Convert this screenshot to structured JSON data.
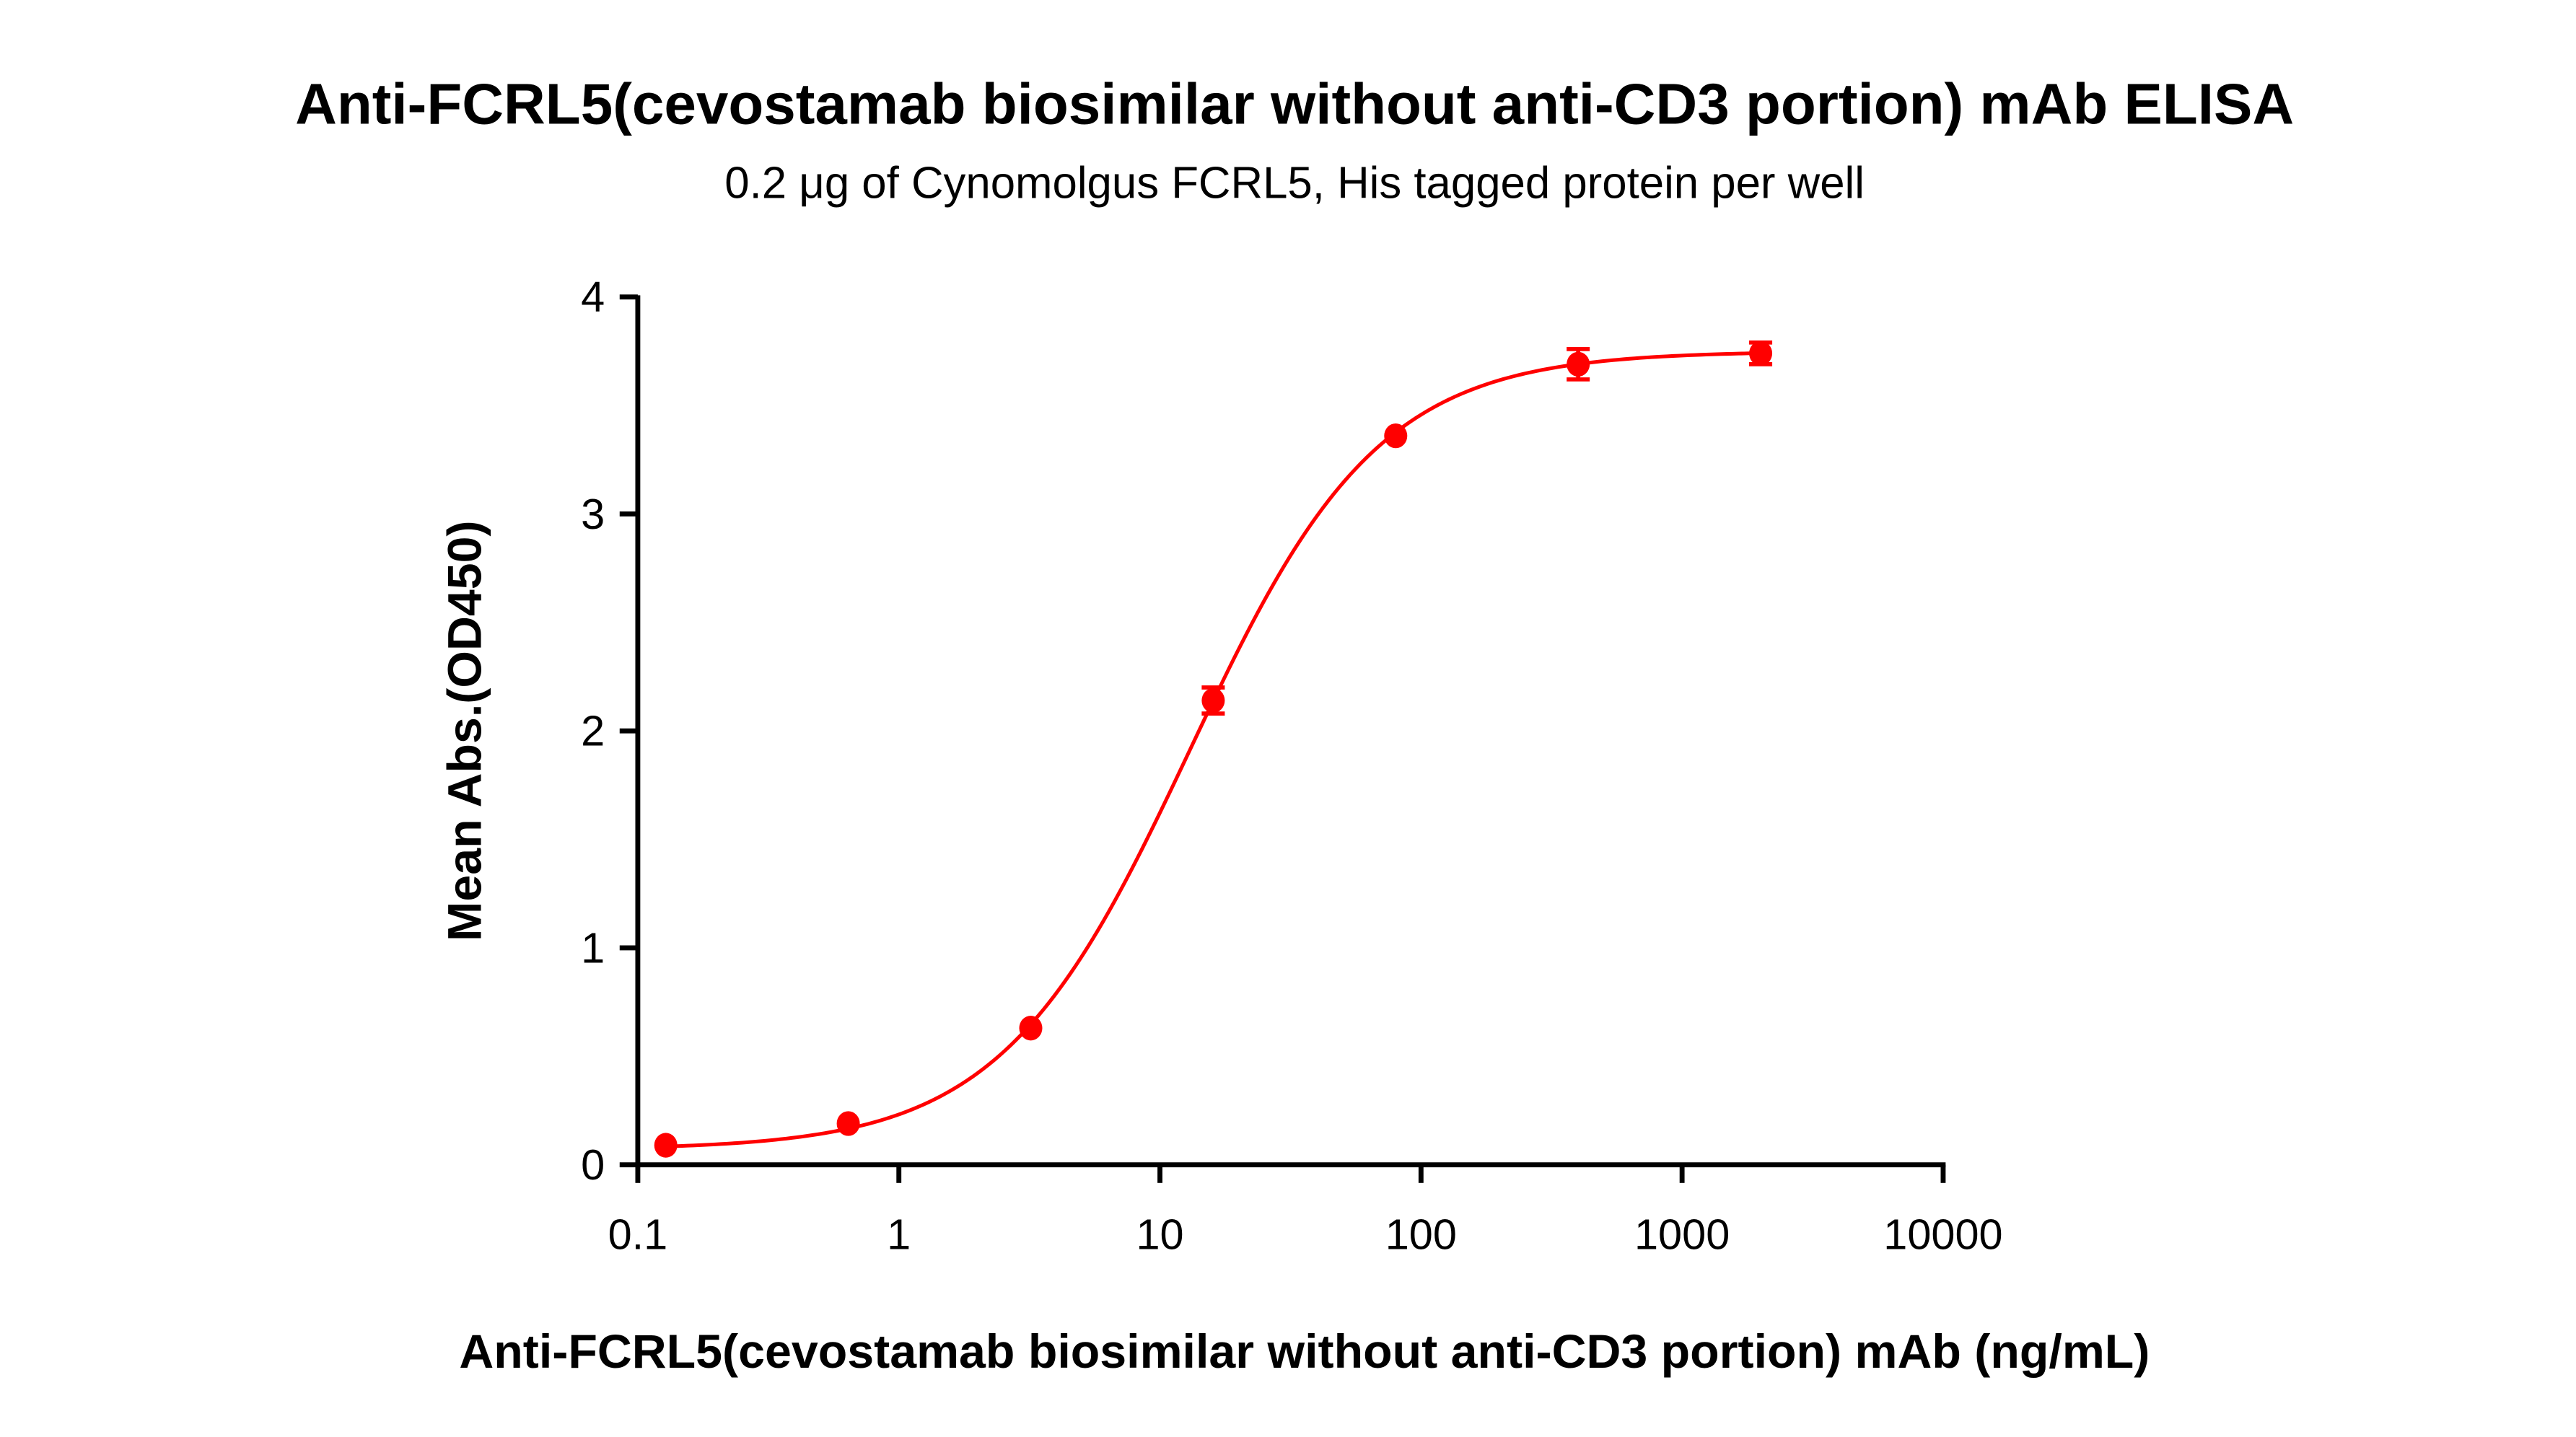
{
  "chart_data": {
    "type": "scatter",
    "title": "Anti-FCRL5(cevostamab biosimilar without anti-CD3 portion) mAb ELISA",
    "subtitle": "0.2 μg of Cynomolgus FCRL5, His tagged protein per well",
    "xlabel": "Anti-FCRL5(cevostamab biosimilar without anti-CD3 portion) mAb (ng/mL)",
    "ylabel": "Mean Abs.(OD450)",
    "x_scale": "log",
    "xlim": [
      0.1,
      10000
    ],
    "ylim": [
      0,
      4
    ],
    "x_ticks": [
      "0.1",
      "1",
      "10",
      "100",
      "1000",
      "10000"
    ],
    "y_ticks": [
      "0",
      "1",
      "2",
      "3",
      "4"
    ],
    "grid": false,
    "color": "#ff0000",
    "fit_curve": "4-parameter logistic",
    "series": [
      {
        "x": [
          0.128,
          0.64,
          3.2,
          16,
          80,
          400,
          2000
        ],
        "y": [
          0.09,
          0.19,
          0.63,
          2.14,
          3.36,
          3.69,
          3.74
        ],
        "error": [
          0.01,
          0.01,
          0.02,
          0.06,
          0.02,
          0.07,
          0.05
        ]
      }
    ]
  }
}
